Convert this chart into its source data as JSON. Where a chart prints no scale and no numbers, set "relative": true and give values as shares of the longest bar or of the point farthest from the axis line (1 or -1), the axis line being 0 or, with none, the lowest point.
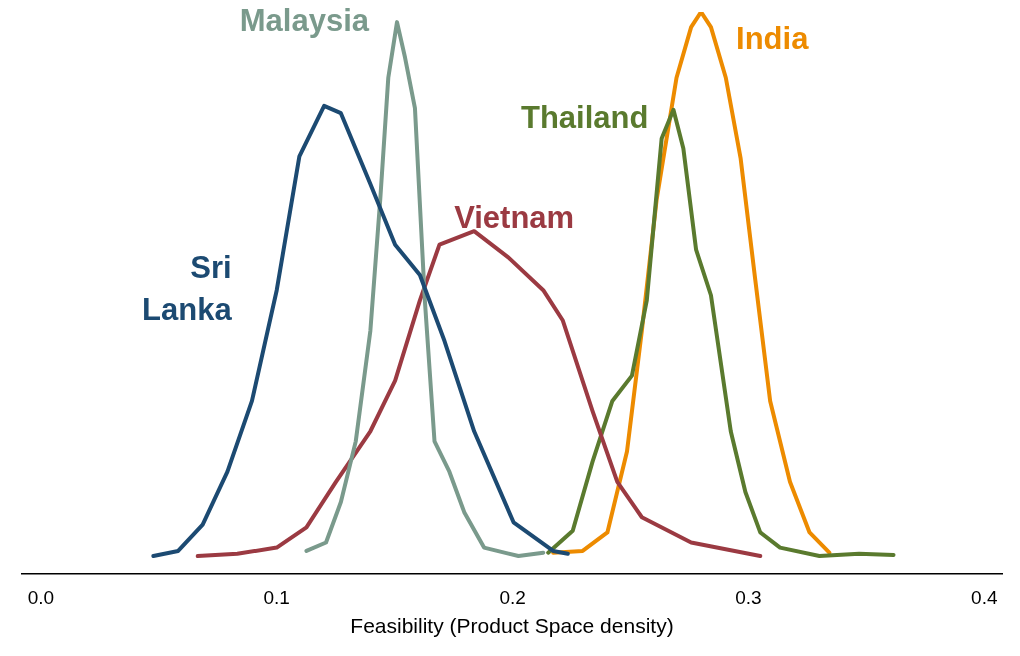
{
  "chart_data": {
    "type": "line",
    "relative": true,
    "xlabel": "Feasibility (Product Space density)",
    "xlim": [
      -0.008,
      0.4075
    ],
    "xticks": [
      {
        "value": 0,
        "label": "0.0"
      },
      0.1,
      0.2,
      0.3,
      0.4
    ],
    "grid": false,
    "legend": false,
    "marker": "none",
    "line_style": "solid",
    "tick_labels": "x",
    "series": [
      {
        "name": "Sri Lanka",
        "color": "#1c4a72",
        "x": [
          0.0477,
          0.0582,
          0.0686,
          0.0791,
          0.0895,
          0.1,
          0.1096,
          0.1201,
          0.1272,
          0.1397,
          0.1502,
          0.1607,
          0.1711,
          0.1837,
          0.2004,
          0.2172,
          0.2234
        ],
        "values": [
          0.032,
          0.041,
          0.088,
          0.182,
          0.308,
          0.505,
          0.743,
          0.833,
          0.82,
          0.694,
          0.586,
          0.532,
          0.415,
          0.254,
          0.092,
          0.041,
          0.036
        ]
      },
      {
        "name": "Malaysia",
        "color": "#7a9a8c",
        "x": [
          0.1126,
          0.1209,
          0.1272,
          0.1335,
          0.1397,
          0.1439,
          0.1473,
          0.151,
          0.1544,
          0.1586,
          0.1628,
          0.1669,
          0.1732,
          0.1795,
          0.1879,
          0.2025,
          0.213
        ],
        "values": [
          0.041,
          0.056,
          0.128,
          0.236,
          0.433,
          0.667,
          0.883,
          0.982,
          0.919,
          0.829,
          0.487,
          0.236,
          0.182,
          0.11,
          0.047,
          0.032,
          0.038
        ]
      },
      {
        "name": "Vietnam",
        "color": "#9b3a42",
        "x": [
          0.0665,
          0.0833,
          0.1,
          0.1126,
          0.1251,
          0.1397,
          0.1502,
          0.1607,
          0.169,
          0.1837,
          0.1983,
          0.213,
          0.2213,
          0.2339,
          0.2444,
          0.2548,
          0.2757,
          0.305
        ],
        "values": [
          0.032,
          0.036,
          0.047,
          0.083,
          0.164,
          0.254,
          0.344,
          0.487,
          0.586,
          0.61,
          0.563,
          0.505,
          0.451,
          0.29,
          0.164,
          0.101,
          0.056,
          0.032
        ]
      },
      {
        "name": "Thailand",
        "color": "#5a7a2e",
        "x": [
          0.2151,
          0.2255,
          0.2339,
          0.2423,
          0.2506,
          0.2569,
          0.2632,
          0.2682,
          0.2724,
          0.2778,
          0.2841,
          0.2925,
          0.2987,
          0.305,
          0.3134,
          0.3301,
          0.3469,
          0.3615
        ],
        "values": [
          0.038,
          0.077,
          0.2,
          0.308,
          0.353,
          0.487,
          0.775,
          0.826,
          0.757,
          0.577,
          0.496,
          0.254,
          0.146,
          0.074,
          0.047,
          0.032,
          0.036,
          0.034
        ]
      },
      {
        "name": "India",
        "color": "#ed8b00",
        "x": [
          0.2172,
          0.2297,
          0.2402,
          0.2485,
          0.2548,
          0.2611,
          0.2695,
          0.2757,
          0.2799,
          0.2841,
          0.2904,
          0.2967,
          0.3029,
          0.3092,
          0.3176,
          0.3259,
          0.3343
        ],
        "values": [
          0.038,
          0.041,
          0.074,
          0.218,
          0.433,
          0.667,
          0.883,
          0.973,
          1,
          0.973,
          0.883,
          0.739,
          0.523,
          0.308,
          0.164,
          0.074,
          0.038
        ]
      }
    ]
  }
}
